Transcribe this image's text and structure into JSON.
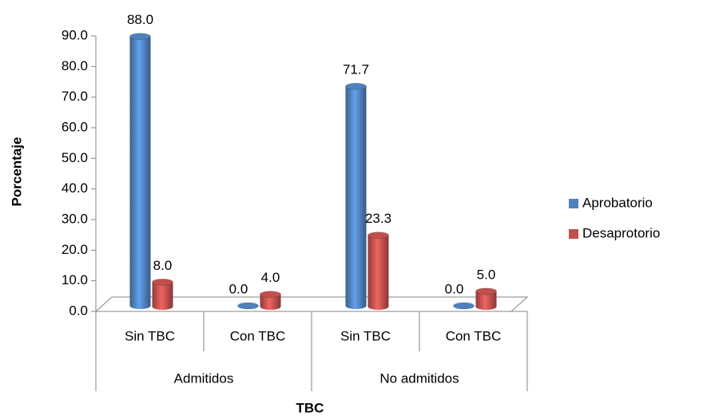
{
  "chart_data": {
    "type": "bar3d",
    "y_label": "Porcentaje",
    "x_label": "TBC",
    "categories": [
      "Sin TBC",
      "Con TBC",
      "Sin TBC",
      "Con TBC"
    ],
    "groups": [
      "Admitidos",
      "No admitidos"
    ],
    "series": [
      {
        "name": "Aprobatorio",
        "color": "#4f81bd",
        "values": [
          88.0,
          0.0,
          71.7,
          0.0
        ],
        "value_labels": [
          "88.0",
          "0.0",
          "71.7",
          "0.0"
        ]
      },
      {
        "name": "Desaprotorio",
        "color": "#c0504d",
        "values": [
          8.0,
          4.0,
          23.3,
          5.0
        ],
        "value_labels": [
          "8.0",
          "4.0",
          "23.3",
          "5.0"
        ]
      }
    ],
    "ylim": [
      0,
      90
    ],
    "yticks": [
      {
        "value": 0,
        "label": "0.0"
      },
      {
        "value": 10,
        "label": "10.0"
      },
      {
        "value": 20,
        "label": "20.0"
      },
      {
        "value": 30,
        "label": "30.0"
      },
      {
        "value": 40,
        "label": "40.0"
      },
      {
        "value": 50,
        "label": "50.0"
      },
      {
        "value": 60,
        "label": "60.0"
      },
      {
        "value": 70,
        "label": "70.0"
      },
      {
        "value": 80,
        "label": "80.0"
      },
      {
        "value": 90,
        "label": "90.0"
      }
    ],
    "legend": "right"
  }
}
